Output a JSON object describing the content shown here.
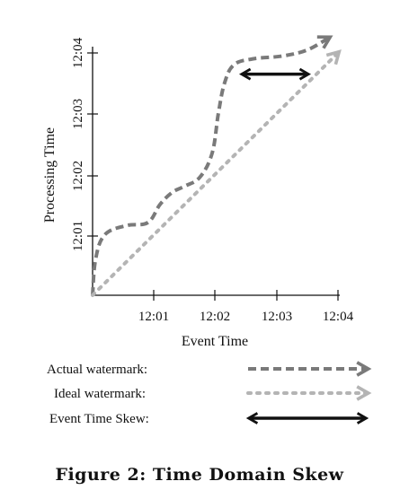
{
  "chart_data": {
    "type": "line",
    "xlabel": "Event Time",
    "ylabel": "Processing Time",
    "x_ticks": [
      "12:01",
      "12:02",
      "12:03",
      "12:04"
    ],
    "y_ticks": [
      "12:01",
      "12:02",
      "12:03",
      "12:04"
    ],
    "xlim": [
      0,
      4
    ],
    "ylim": [
      0,
      4
    ],
    "grid": false,
    "legend_position": "bottom",
    "series": [
      {
        "name": "Actual watermark:",
        "style": "dashed",
        "color": "#7a7a7a",
        "x": [
          0.0,
          0.05,
          0.2,
          0.55,
          0.9,
          1.1,
          1.3,
          1.5,
          1.75,
          1.95,
          2.05,
          2.15,
          2.3,
          2.6,
          3.1,
          3.5,
          3.85
        ],
        "y": [
          0.0,
          0.6,
          1.0,
          1.15,
          1.2,
          1.5,
          1.7,
          1.8,
          1.95,
          2.35,
          3.0,
          3.5,
          3.8,
          3.9,
          3.95,
          4.05,
          4.25
        ]
      },
      {
        "name": "Ideal watermark:",
        "style": "dotted",
        "color": "#b4b4b4",
        "x": [
          0.0,
          4.0
        ],
        "y": [
          0.0,
          4.0
        ]
      }
    ],
    "annotations": [
      {
        "name": "Event Time Skew:",
        "type": "double-arrow",
        "color": "#111111",
        "x_from": 2.45,
        "x_to": 3.5,
        "y": 3.65
      }
    ]
  },
  "caption": "Figure 2: Time Domain Skew"
}
